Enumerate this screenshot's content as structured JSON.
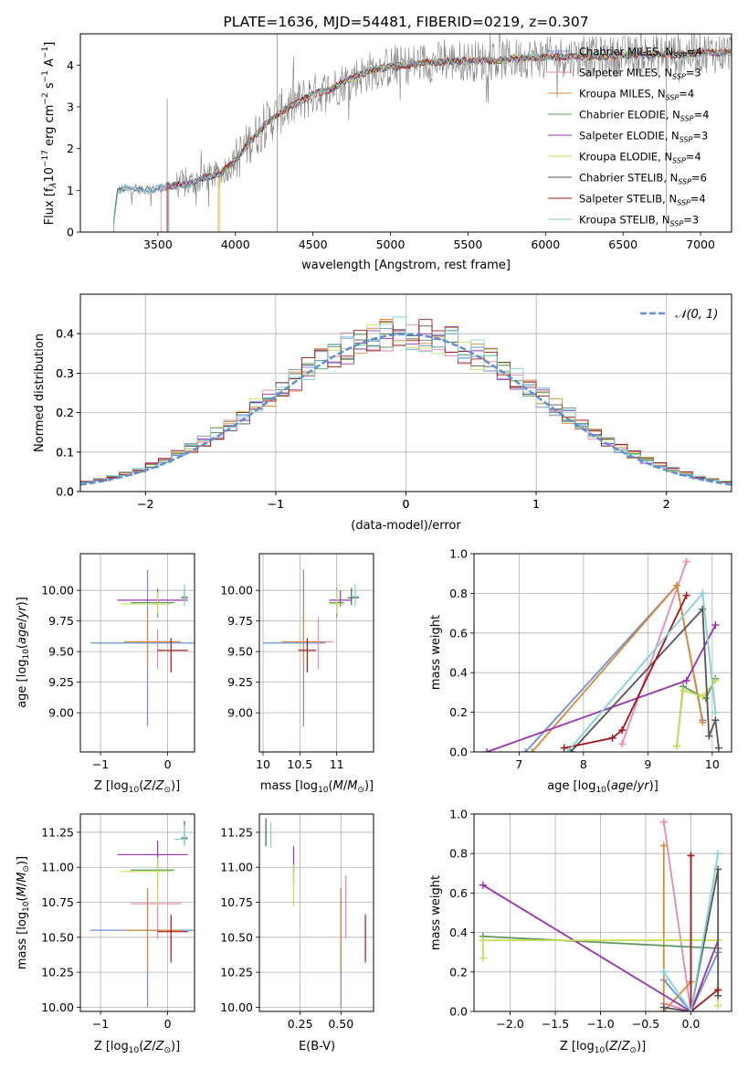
{
  "figure": {
    "title": "PLATE=1636, MJD=54481, FIBERID=0219, z=0.307"
  },
  "model_names": [
    "Chabrier MILES, N$_{SSP}$=4",
    "Salpeter MILES, N$_{SSP}$=3",
    "Kroupa MILES, N$_{SSP}$=4",
    "Chabrier ELODIE, N$_{SSP}$=4",
    "Salpeter ELODIE, N$_{SSP}$=3",
    "Kroupa ELODIE, N$_{SSP}$=4",
    "Chabrier STELIB, N$_{SSP}$=6",
    "Salpeter STELIB, N$_{SSP}$=4",
    "Kroupa STELIB, N$_{SSP}$=3"
  ],
  "colors": [
    "#6b8fd9",
    "#e887b5",
    "#d88a35",
    "#5c9a5c",
    "#9b30b0",
    "#c9dd5a",
    "#555555",
    "#a31515",
    "#7fd2d8"
  ],
  "chart_data": [
    {
      "id": "spectrum",
      "type": "line",
      "title": "PLATE=1636, MJD=54481, FIBERID=0219, z=0.307",
      "xlabel": "wavelength [Angstrom, rest frame]",
      "ylabel": "Flux [f$_\\lambda$10$^{-17}$ erg cm$^{-2}$ s$^{-1}$ A$^{-1}$]",
      "xlim": [
        3000,
        7200
      ],
      "ylim": [
        0,
        4.75
      ],
      "xticks": [
        3500,
        4000,
        4500,
        5000,
        5500,
        6000,
        6500,
        7000
      ],
      "yticks": [
        0,
        1,
        2,
        3,
        4
      ],
      "legend": "right",
      "data_series": {
        "name": "data",
        "color": "#808080",
        "x_range": [
          3215,
          7200
        ]
      },
      "continuum": {
        "x": [
          3215,
          3240,
          3300,
          3400,
          3500,
          3600,
          3700,
          3800,
          3900,
          4000,
          4100,
          4200,
          4300,
          4400,
          4500,
          4600,
          4700,
          4800,
          4900,
          5000,
          5200,
          5400,
          5600,
          5800,
          6000,
          6200,
          6400,
          6600,
          6800,
          7000,
          7200
        ],
        "y": [
          0.2,
          1.0,
          1.05,
          1.0,
          1.05,
          1.12,
          1.15,
          1.3,
          1.4,
          1.7,
          2.2,
          2.6,
          2.9,
          3.1,
          3.3,
          3.4,
          3.6,
          3.75,
          3.9,
          3.95,
          4.05,
          4.1,
          4.1,
          4.15,
          4.2,
          4.2,
          4.2,
          4.25,
          4.25,
          4.3,
          4.3
        ]
      },
      "model_starts": [
        3215,
        3520,
        3890,
        3570,
        3560,
        3900,
        3215,
        3560,
        3215
      ]
    },
    {
      "id": "residuals",
      "type": "line",
      "xlabel": "(data-model)/error",
      "ylabel": "Normed distribution",
      "xlim": [
        -2.5,
        2.5
      ],
      "ylim": [
        0,
        0.5
      ],
      "xticks": [
        -2,
        -1,
        0,
        1,
        2
      ],
      "yticks": [
        0.0,
        0.1,
        0.2,
        0.3,
        0.4
      ],
      "legend": "top-right",
      "reference": {
        "name": "$\\mathcal{N}(0,1)$",
        "mean": 0,
        "sigma": 1,
        "color": "#5b8fd8"
      }
    },
    {
      "id": "age-vs-Z",
      "type": "scatter",
      "xlabel": "Z [log$_{10}$(Z/Z$_\\odot$)]",
      "ylabel": "age  [log$_{10}$(age/yr)]",
      "xlim": [
        -1.3,
        0.4
      ],
      "ylim": [
        8.68,
        10.3
      ],
      "xticks": [
        -1,
        0
      ],
      "yticks": [
        9.0,
        9.25,
        9.5,
        9.75,
        10.0
      ],
      "points": [
        {
          "x": -0.3,
          "y": 9.57,
          "xerr": [
            0.85,
            0.85
          ],
          "yerr": [
            0.68,
            0.6
          ]
        },
        {
          "x": -0.15,
          "y": 9.58,
          "xerr": [
            0.25,
            0.25
          ],
          "yerr": [
            0.22,
            0.1
          ]
        },
        {
          "x": -0.3,
          "y": 9.58,
          "xerr": [
            0.35,
            0.5
          ],
          "yerr": [
            0.2,
            0.25
          ]
        },
        {
          "x": -0.15,
          "y": 9.9,
          "xerr": [
            0.4,
            0.25
          ],
          "yerr": [
            0.12,
            0.12
          ]
        },
        {
          "x": -0.15,
          "y": 9.92,
          "xerr": [
            0.6,
            0.45
          ],
          "yerr": [
            0.05,
            0.08
          ]
        },
        {
          "x": -0.15,
          "y": 9.89,
          "xerr": [
            0.55,
            0.2
          ],
          "yerr": [
            0.08,
            0.1
          ]
        },
        {
          "x": 0.25,
          "y": 9.94,
          "xerr": [
            0.05,
            0.05
          ],
          "yerr": [
            0.03,
            0.08
          ]
        },
        {
          "x": 0.05,
          "y": 9.51,
          "xerr": [
            0.2,
            0.25
          ],
          "yerr": [
            0.18,
            0.1
          ]
        },
        {
          "x": 0.25,
          "y": 9.95,
          "xerr": [
            0.04,
            0.04
          ],
          "yerr": [
            0.08,
            0.1
          ]
        }
      ]
    },
    {
      "id": "age-vs-mass",
      "type": "scatter",
      "xlabel": "mass [log$_{10}$(M/M$_\\odot$)]",
      "ylabel": "",
      "xlim": [
        9.95,
        11.5
      ],
      "ylim": [
        8.68,
        10.3
      ],
      "xticks": [
        10.0,
        10.5,
        11.0
      ],
      "yticks": [
        9.0,
        9.25,
        9.5,
        9.75,
        10.0
      ],
      "points": [
        {
          "x": 10.55,
          "y": 9.57,
          "xerr": [
            0.55,
            0.3
          ],
          "yerr": [
            0.68,
            0.6
          ]
        },
        {
          "x": 10.75,
          "y": 9.58,
          "xerr": [
            0.25,
            0.2
          ],
          "yerr": [
            0.22,
            0.2
          ]
        },
        {
          "x": 10.55,
          "y": 9.58,
          "xerr": [
            0.3,
            0.3
          ],
          "yerr": [
            0.2,
            0.25
          ]
        },
        {
          "x": 11.0,
          "y": 9.9,
          "xerr": [
            0.1,
            0.1
          ],
          "yerr": [
            0.12,
            0.12
          ]
        },
        {
          "x": 11.05,
          "y": 9.92,
          "xerr": [
            0.15,
            0.15
          ],
          "yerr": [
            0.05,
            0.08
          ]
        },
        {
          "x": 11.0,
          "y": 9.89,
          "xerr": [
            0.1,
            0.1
          ],
          "yerr": [
            0.08,
            0.12
          ]
        },
        {
          "x": 11.2,
          "y": 9.94,
          "xerr": [
            0.05,
            0.1
          ],
          "yerr": [
            0.06,
            0.08
          ]
        },
        {
          "x": 10.6,
          "y": 9.51,
          "xerr": [
            0.12,
            0.12
          ],
          "yerr": [
            0.18,
            0.1
          ]
        },
        {
          "x": 11.25,
          "y": 9.95,
          "xerr": [
            0.05,
            0.05
          ],
          "yerr": [
            0.08,
            0.1
          ]
        }
      ]
    },
    {
      "id": "weight-vs-age",
      "type": "line",
      "xlabel": "age  [log$_{10}$(age/yr)]",
      "ylabel": "mass weight",
      "xlim": [
        6.3,
        10.3
      ],
      "ylim": [
        0,
        1.0
      ],
      "xticks": [
        7,
        8,
        9,
        10
      ],
      "yticks": [
        0.0,
        0.2,
        0.4,
        0.6,
        0.8,
        1.0
      ],
      "series": [
        {
          "x": [
            7.1,
            9.45,
            9.85
          ],
          "y": [
            0,
            0.84,
            0.16
          ]
        },
        {
          "x": [
            8.6,
            9.6
          ],
          "y": [
            0.04,
            0.96
          ]
        },
        {
          "x": [
            7.2,
            9.45,
            9.85
          ],
          "y": [
            0,
            0.84,
            0.15
          ]
        },
        {
          "x": [
            9.45,
            9.55,
            9.9,
            10.05
          ],
          "y": [
            0.03,
            0.33,
            0.27,
            0.37
          ]
        },
        {
          "x": [
            6.5,
            9.6,
            10.05
          ],
          "y": [
            0,
            0.36,
            0.64
          ]
        },
        {
          "x": [
            9.45,
            9.55,
            9.85,
            10.05
          ],
          "y": [
            0.03,
            0.31,
            0.28,
            0.36
          ]
        },
        {
          "x": [
            7.8,
            9.85,
            9.95,
            10.05,
            10.1
          ],
          "y": [
            0,
            0.72,
            0.08,
            0.16,
            0.02
          ]
        },
        {
          "x": [
            7.7,
            8.45,
            8.6,
            9.6
          ],
          "y": [
            0.02,
            0.07,
            0.11,
            0.79
          ]
        },
        {
          "x": [
            7.75,
            9.85,
            10.05
          ],
          "y": [
            0,
            0.8,
            0.2
          ]
        }
      ]
    },
    {
      "id": "mass-vs-Z",
      "type": "scatter",
      "xlabel": "Z [log$_{10}$(Z/Z$_\\odot$)]",
      "ylabel": "mass [log$_{10}$(M/M$_\\odot$)]",
      "xlim": [
        -1.3,
        0.4
      ],
      "ylim": [
        9.97,
        11.38
      ],
      "xticks": [
        -1,
        0
      ],
      "yticks": [
        10.0,
        10.25,
        10.5,
        10.75,
        11.0,
        11.25
      ],
      "points": [
        {
          "x": -0.3,
          "y": 10.55,
          "xerr": [
            0.85,
            0.85
          ],
          "yerr": [
            0.55,
            0.3
          ]
        },
        {
          "x": -0.15,
          "y": 10.74,
          "xerr": [
            0.4,
            0.35
          ],
          "yerr": [
            0.25,
            0.2
          ]
        },
        {
          "x": -0.3,
          "y": 10.55,
          "xerr": [
            0.35,
            0.5
          ],
          "yerr": [
            0.3,
            0.3
          ]
        },
        {
          "x": -0.15,
          "y": 10.98,
          "xerr": [
            0.4,
            0.25
          ],
          "yerr": [
            0.12,
            0.1
          ]
        },
        {
          "x": -0.15,
          "y": 11.09,
          "xerr": [
            0.6,
            0.45
          ],
          "yerr": [
            0.1,
            0.1
          ]
        },
        {
          "x": -0.15,
          "y": 10.97,
          "xerr": [
            0.55,
            0.2
          ],
          "yerr": [
            0.25,
            0.1
          ]
        },
        {
          "x": 0.25,
          "y": 11.21,
          "xerr": [
            0.05,
            0.05
          ],
          "yerr": [
            0.05,
            0.12
          ]
        },
        {
          "x": 0.05,
          "y": 10.54,
          "xerr": [
            0.2,
            0.25
          ],
          "yerr": [
            0.22,
            0.12
          ]
        },
        {
          "x": 0.25,
          "y": 11.2,
          "xerr": [
            0.15,
            0.05
          ],
          "yerr": [
            0.05,
            0.1
          ]
        }
      ]
    },
    {
      "id": "mass-vs-ebv",
      "type": "scatter",
      "xlabel": "E(B-V)",
      "ylabel": "",
      "xlim": [
        0.0,
        0.7
      ],
      "ylim": [
        9.97,
        11.38
      ],
      "xticks": [
        0.25,
        0.5
      ],
      "tick_labels": [
        "0.25",
        "0.50"
      ],
      "yticks": [
        10.0,
        10.25,
        10.5,
        10.75,
        11.0,
        11.25
      ],
      "points": [
        {
          "x": 0.5,
          "y": 10.55,
          "xerr": [
            0,
            0
          ],
          "yerr": [
            0.55,
            0.3
          ]
        },
        {
          "x": 0.53,
          "y": 10.74,
          "xerr": [
            0,
            0
          ],
          "yerr": [
            0.25,
            0.2
          ]
        },
        {
          "x": 0.5,
          "y": 10.55,
          "xerr": [
            0,
            0
          ],
          "yerr": [
            0.3,
            0.3
          ]
        },
        {
          "x": 0.21,
          "y": 10.98,
          "xerr": [
            0,
            0
          ],
          "yerr": [
            0.12,
            0.1
          ]
        },
        {
          "x": 0.21,
          "y": 11.05,
          "xerr": [
            0,
            0
          ],
          "yerr": [
            0.1,
            0.1
          ]
        },
        {
          "x": 0.21,
          "y": 10.92,
          "xerr": [
            0,
            0
          ],
          "yerr": [
            0.2,
            0.1
          ]
        },
        {
          "x": 0.04,
          "y": 11.25,
          "xerr": [
            0,
            0
          ],
          "yerr": [
            0.1,
            0.1
          ]
        },
        {
          "x": 0.65,
          "y": 10.54,
          "xerr": [
            0,
            0
          ],
          "yerr": [
            0.22,
            0.12
          ]
        },
        {
          "x": 0.07,
          "y": 11.22,
          "xerr": [
            0,
            0
          ],
          "yerr": [
            0.08,
            0.1
          ]
        }
      ]
    },
    {
      "id": "weight-vs-Z",
      "type": "line",
      "xlabel": "Z [log$_{10}$(Z/Z$_\\odot$)]",
      "ylabel": "mass weight",
      "xlim": [
        -2.4,
        0.45
      ],
      "ylim": [
        0,
        1.0
      ],
      "xticks": [
        -2.0,
        -1.5,
        -1.0,
        -0.5,
        0.0
      ],
      "tick_labels": [
        "−2.0",
        "−1.5",
        "−1.0",
        "−0.5",
        "0.0"
      ],
      "yticks": [
        0.0,
        0.2,
        0.4,
        0.6,
        0.8,
        1.0
      ],
      "series": [
        {
          "x": [
            -0.3,
            0,
            0.3
          ],
          "y": [
            0.16,
            0,
            0.3
          ]
        },
        {
          "x": [
            -0.3,
            0,
            -0.3
          ],
          "y": [
            0.96,
            0,
            0.04
          ]
        },
        {
          "x": [
            -0.3,
            -0.3,
            0
          ],
          "y": [
            0.84,
            0,
            0.15
          ]
        },
        {
          "x": [
            -2.3,
            0.3
          ],
          "y": [
            0.38,
            0.32
          ]
        },
        {
          "x": [
            -2.3,
            0,
            0.3
          ],
          "y": [
            0.64,
            0,
            0.36
          ]
        },
        {
          "x": [
            -2.3,
            -2.3,
            0.3,
            0.3
          ],
          "y": [
            0.27,
            0.36,
            0.36,
            0.03
          ]
        },
        {
          "x": [
            -0.3,
            0,
            0.3,
            0.3
          ],
          "y": [
            0.02,
            0,
            0.72,
            0.08
          ]
        },
        {
          "x": [
            0,
            0,
            0.3
          ],
          "y": [
            0.79,
            0,
            0.11
          ]
        },
        {
          "x": [
            -0.3,
            0,
            0.3
          ],
          "y": [
            0.2,
            0,
            0.8
          ]
        }
      ]
    }
  ]
}
